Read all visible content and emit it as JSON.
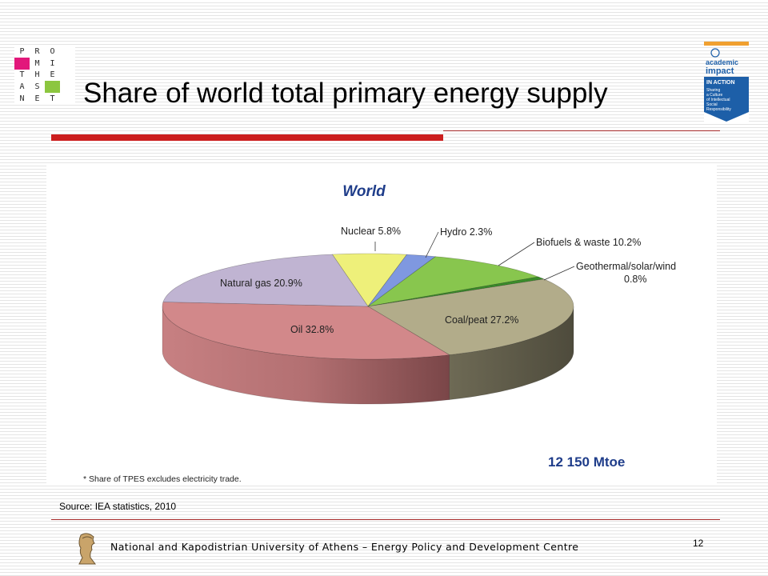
{
  "slide": {
    "title": "Share of world total primary energy supply",
    "source": "Source: IEA statistics, 2010",
    "footer": "National and Kapodistrian University of Athens – Energy Policy and Development Centre",
    "page_number": "12"
  },
  "logo_left": {
    "cells": [
      {
        "t": "P",
        "bg": "#ffffff"
      },
      {
        "t": "R",
        "bg": "#ffffff"
      },
      {
        "t": "O",
        "bg": "#ffffff"
      },
      {
        "t": "",
        "bg": "#ffffff"
      },
      {
        "t": "",
        "bg": "#e2187b"
      },
      {
        "t": "M",
        "bg": "#ffffff"
      },
      {
        "t": "I",
        "bg": "#ffffff"
      },
      {
        "t": "",
        "bg": "#ffffff"
      },
      {
        "t": "T",
        "bg": "#ffffff"
      },
      {
        "t": "H",
        "bg": "#ffffff"
      },
      {
        "t": "E",
        "bg": "#ffffff"
      },
      {
        "t": "",
        "bg": "#ffffff"
      },
      {
        "t": "A",
        "bg": "#ffffff"
      },
      {
        "t": "S",
        "bg": "#ffffff"
      },
      {
        "t": "",
        "bg": "#8cc63f"
      },
      {
        "t": "",
        "bg": "#ffffff"
      },
      {
        "t": "N",
        "bg": "#ffffff"
      },
      {
        "t": "E",
        "bg": "#ffffff"
      },
      {
        "t": "T",
        "bg": "#ffffff"
      },
      {
        "t": "",
        "bg": "#ffffff"
      }
    ]
  },
  "logo_right": {
    "lines": [
      "academic",
      "impact",
      "IN ACTION",
      "Sharing",
      "a Culture",
      "of Intellectual",
      "Social",
      "Responsibility"
    ]
  },
  "chart_data": {
    "type": "pie",
    "title": "World",
    "total_label": "12 150  Mtoe",
    "footnote": "* Share of TPES excludes electricity trade.",
    "slices": [
      {
        "label": "Nuclear 5.8%",
        "value": 5.8,
        "color": "#eef07a"
      },
      {
        "label": "Hydro 2.3%",
        "value": 2.3,
        "color": "#7f98e0"
      },
      {
        "label": "Biofuels & waste 10.2%",
        "value": 10.2,
        "color": "#88c64e"
      },
      {
        "label": "Geothermal/solar/wind 0.8%",
        "value": 0.8,
        "color": "#3a8c2a"
      },
      {
        "label": "Coal/peat 27.2%",
        "value": 27.2,
        "color": "#b2ac8a"
      },
      {
        "label": "Oil 32.8%",
        "value": 32.8,
        "color": "#d2888a"
      },
      {
        "label": "Natural gas 20.9%",
        "value": 20.9,
        "color": "#c0b4d2"
      }
    ]
  }
}
